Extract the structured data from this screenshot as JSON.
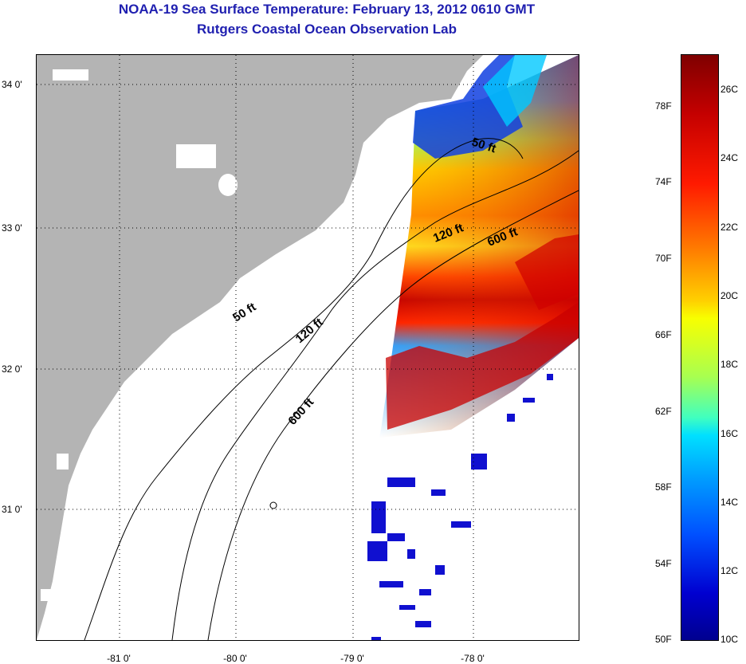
{
  "header": {
    "title": "NOAA-19 Sea Surface Temperature:  February 13, 2012 0610 GMT",
    "subtitle": "Rutgers Coastal Ocean Observation Lab"
  },
  "map": {
    "x_ticks": [
      "-81 0'",
      "-80 0'",
      "-79 0'",
      "-78 0'"
    ],
    "y_ticks": [
      "34 0'",
      "33 0'",
      "32 0'",
      "31 0'"
    ],
    "land_color": "#b4b4b4",
    "ocean_color": "#ffffff",
    "grid": "dotted",
    "contours": [
      {
        "label": "50 ft",
        "depth_ft": 50
      },
      {
        "label": "120 ft",
        "depth_ft": 120
      },
      {
        "label": "600 ft",
        "depth_ft": 600
      }
    ],
    "labels": {
      "c50_north": "50 ft",
      "c120_north": "120 ft",
      "c600_north": "600 ft",
      "c50_south": "50 ft",
      "c120_south": "120 ft",
      "c600_south": "600 ft"
    }
  },
  "colorbar": {
    "fahrenheit_ticks": [
      "78F",
      "74F",
      "70F",
      "66F",
      "62F",
      "58F",
      "54F",
      "50F"
    ],
    "celsius_ticks": [
      "26C",
      "24C",
      "22C",
      "20C",
      "18C",
      "16C",
      "14C",
      "12C",
      "10C"
    ],
    "range_c": [
      10,
      27
    ],
    "colormap": "jet"
  }
}
